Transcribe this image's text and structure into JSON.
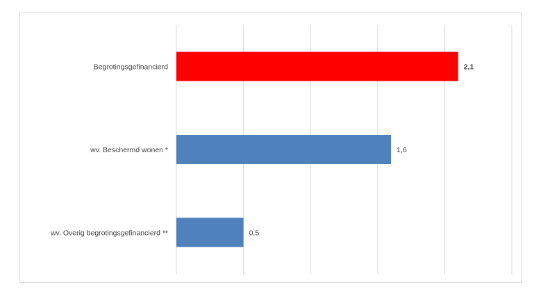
{
  "chart_data": {
    "type": "bar",
    "orientation": "horizontal",
    "categories": [
      "Begrotingsgefinancierd",
      "wv. Beschermd wonen *",
      "wv. Overig begrotingsgefinancierd **"
    ],
    "values": [
      2.1,
      1.6,
      0.5
    ],
    "value_labels": [
      "2,1",
      "1,6",
      "0,5"
    ],
    "bar_colors": [
      "#ff0000",
      "#4f81bd",
      "#4f81bd"
    ],
    "bold_value_labels": [
      true,
      false,
      false
    ],
    "xlim": [
      0,
      2.5
    ],
    "grid": true,
    "title": "",
    "xlabel": "",
    "ylabel": ""
  }
}
